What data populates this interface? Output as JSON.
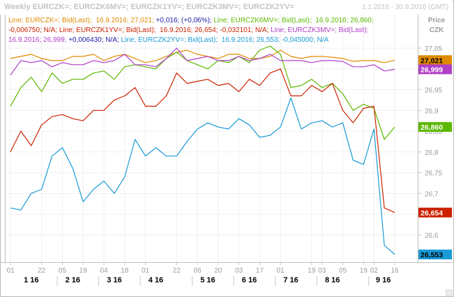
{
  "header": {
    "title": "Weekly EURCZK=; EURCZK6MV=; EURCZK1YV=; EURCZK3MV=; EURCZK2YV=",
    "date_range": "1.1.2016 - 30.9.2016 (GMT)"
  },
  "axis_label": {
    "line1": "Price",
    "line2": "CZK"
  },
  "legend": {
    "line1": [
      {
        "text": "Line; EURCZK=; Bid(Last);  16.9.2016; 27,021; ",
        "color": "#e08a00"
      },
      {
        "text": "+0,016; (+0,06%); ",
        "color": "#1a1aa6"
      },
      {
        "text": "Line; EURCZK6MV=; Bid(Last);  16.9.2016; 26,860; ",
        "color": "#5cb800"
      }
    ],
    "line2": [
      {
        "text": "-0,006750; N/A; ",
        "color": "#cc2200"
      },
      {
        "text": "Line; EURCZK1YV=; Bid(Last);  16.9.2016; 26,654; -0,032101; N/A; ",
        "color": "#cc2200"
      },
      {
        "text": "Line; EURCZK3MV=; Bid(Last);",
        "color": "#b040c8"
      }
    ],
    "line3": [
      {
        "text": "16.9.2016; 26,999; ",
        "color": "#b040c8"
      },
      {
        "text": "+0,006430; N/A; ",
        "color": "#1a1aa6"
      },
      {
        "text": "Line; EURCZK2YV=; Bid(Last);  16.9.2016; 26,553; -0,045000; N/A",
        "color": "#1a9ad6"
      }
    ]
  },
  "chart_data": {
    "type": "line",
    "x": [
      "01",
      "08",
      "15",
      "22",
      "29",
      "05",
      "12",
      "19",
      "26",
      "04",
      "11",
      "18",
      "25",
      "01",
      "08",
      "15",
      "22",
      "29",
      "06",
      "13",
      "20",
      "27",
      "03",
      "10",
      "17",
      "24",
      "01",
      "08",
      "15",
      "22",
      "29",
      "05",
      "12",
      "19",
      "26",
      "02",
      "09",
      "16"
    ],
    "x_tick_labels": [
      "01",
      "22",
      "05",
      "19",
      "04",
      "18",
      "01",
      "22",
      "06",
      "20",
      "03",
      "17",
      "01",
      "19",
      "03",
      "05",
      "19",
      "02",
      "16"
    ],
    "x_tick_indices": [
      0,
      3,
      5,
      7,
      9,
      11,
      13,
      16,
      18,
      20,
      22,
      24,
      26,
      29,
      30,
      32,
      34,
      35,
      37
    ],
    "x_month_labels": [
      "1 16",
      "2 16",
      "3 16",
      "4 16",
      "5 16",
      "6 16",
      "7 16",
      "8 16",
      "9 16"
    ],
    "x_month_indices": [
      2,
      6,
      10,
      14,
      19,
      23,
      27,
      31,
      35.9
    ],
    "ylim": [
      26.55,
      27.07
    ],
    "y_ticks": [
      {
        "value": 27.05,
        "label": "27,05"
      },
      {
        "value": 27.0,
        "label": "27"
      },
      {
        "value": 26.95,
        "label": "26,95"
      },
      {
        "value": 26.9,
        "label": "26,9"
      },
      {
        "value": 26.85,
        "label": "26,85"
      },
      {
        "value": 26.8,
        "label": "26,8"
      },
      {
        "value": 26.75,
        "label": "26,75"
      },
      {
        "value": 26.7,
        "label": "26,7"
      },
      {
        "value": 26.65,
        "label": "26,65"
      },
      {
        "value": 26.6,
        "label": "26,6"
      }
    ],
    "series": [
      {
        "name": "EURCZK=",
        "color": "#e08a00",
        "last_label": "27,021",
        "label_text_color": "#000000",
        "values": [
          27.025,
          27.03,
          27.035,
          27.025,
          27.02,
          27.02,
          27.03,
          27.03,
          27.035,
          27.02,
          27.03,
          27.035,
          27.025,
          27.015,
          27.02,
          27.03,
          27.04,
          27.045,
          27.035,
          27.03,
          27.025,
          27.035,
          27.035,
          27.025,
          27.025,
          27.03,
          27.045,
          27.03,
          27.025,
          27.03,
          27.03,
          27.028,
          27.025,
          27.018,
          27.02,
          27.02,
          27.015,
          27.021
        ]
      },
      {
        "name": "EURCZK6MV=",
        "color": "#5cb800",
        "last_label": "26,860",
        "label_text_color": "#ffffff",
        "values": [
          26.91,
          26.955,
          26.98,
          26.945,
          26.99,
          26.965,
          26.975,
          26.975,
          26.99,
          26.995,
          26.975,
          27.005,
          27.01,
          27.005,
          27.0,
          27.025,
          27.04,
          27.02,
          27.01,
          27.0,
          27.02,
          27.015,
          27.03,
          27.015,
          27.045,
          27.055,
          27.035,
          26.955,
          26.96,
          26.975,
          26.955,
          26.965,
          26.94,
          26.9,
          26.915,
          26.905,
          26.83,
          26.86
        ]
      },
      {
        "name": "EURCZK1YV=",
        "color": "#cc2200",
        "last_label": "26,654",
        "label_text_color": "#ffffff",
        "values": [
          26.8,
          26.85,
          26.815,
          26.865,
          26.885,
          26.89,
          26.88,
          26.875,
          26.9,
          26.9,
          26.925,
          26.935,
          26.955,
          26.91,
          26.91,
          26.935,
          26.99,
          26.965,
          26.97,
          26.975,
          26.96,
          26.965,
          26.945,
          26.975,
          26.96,
          26.99,
          27.0,
          26.935,
          26.935,
          26.96,
          26.945,
          26.965,
          26.9,
          26.87,
          26.905,
          26.91,
          26.665,
          26.654
        ]
      },
      {
        "name": "EURCZK3MV=",
        "color": "#b040c8",
        "last_label": "26,999",
        "label_text_color": "#ffffff",
        "values": [
          26.985,
          27.02,
          27.015,
          27.02,
          27.005,
          27.015,
          27.01,
          27.01,
          27.02,
          27.015,
          27.02,
          27.035,
          27.01,
          27.01,
          27.005,
          27.025,
          27.05,
          27.02,
          27.025,
          27.03,
          27.02,
          27.02,
          27.03,
          27.02,
          27.025,
          27.035,
          27.02,
          27.02,
          27.02,
          27.015,
          27.02,
          27.02,
          27.018,
          27.005,
          27.005,
          27.01,
          26.995,
          26.999
        ]
      },
      {
        "name": "EURCZK2YV=",
        "color": "#1a9ad6",
        "last_label": "26,553",
        "label_text_color": "#000000",
        "values": [
          26.665,
          26.66,
          26.7,
          26.71,
          26.79,
          26.81,
          26.76,
          26.68,
          26.71,
          26.73,
          26.7,
          26.74,
          26.83,
          26.79,
          26.81,
          26.79,
          26.79,
          26.825,
          26.855,
          26.87,
          26.86,
          26.855,
          26.88,
          26.865,
          26.835,
          26.84,
          26.86,
          26.93,
          26.855,
          26.87,
          26.875,
          26.86,
          26.87,
          26.78,
          26.77,
          26.855,
          26.575,
          26.553
        ]
      }
    ]
  }
}
